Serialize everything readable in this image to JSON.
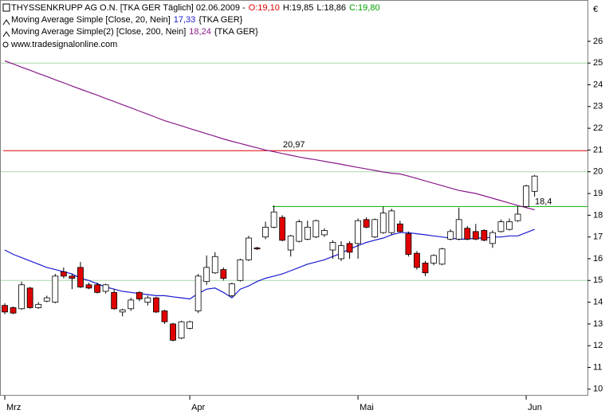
{
  "chart_data": {
    "type": "candlestick",
    "title": "THYSSENKRUPP AG O.N. [TKA GER  Täglich] 02.06.2009 -",
    "ohlc_labels": [
      {
        "text": "O:19,10",
        "color": "#e00000"
      },
      {
        "text": "H:19,85",
        "color": "#000000"
      },
      {
        "text": "L:18,86",
        "color": "#000000"
      },
      {
        "text": "C:19,80",
        "color": "#00a000"
      }
    ],
    "source": "www.tradesignalonline.com",
    "currency": "€",
    "categories": [
      "Mrz",
      null,
      null,
      null,
      null,
      null,
      null,
      null,
      null,
      null,
      null,
      null,
      null,
      null,
      null,
      null,
      null,
      null,
      null,
      null,
      null,
      null,
      "Apr",
      null,
      null,
      null,
      null,
      null,
      null,
      null,
      null,
      null,
      null,
      null,
      null,
      null,
      null,
      null,
      null,
      null,
      null,
      null,
      "Mai",
      null,
      null,
      null,
      null,
      null,
      null,
      null,
      null,
      null,
      null,
      null,
      null,
      null,
      null,
      null,
      null,
      null,
      null,
      null,
      "Jun",
      null
    ],
    "candles": {
      "up_color": "#ffffff",
      "down_color": "#e00000",
      "open": [
        13.85,
        13.75,
        13.7,
        14.65,
        13.75,
        14.05,
        14.0,
        15.4,
        15.2,
        15.6,
        14.8,
        14.8,
        14.5,
        14.45,
        13.55,
        13.7,
        14.45,
        14.0,
        14.2,
        13.6,
        13.0,
        12.35,
        12.8,
        13.6,
        14.95,
        15.35,
        15.5,
        14.3,
        15.0,
        15.95,
        16.5,
        17.0,
        17.45,
        17.9,
        16.4,
        16.8,
        16.9,
        17.0,
        17.1,
        16.4,
        16.0,
        16.7,
        16.7,
        17.8,
        17.0,
        17.2,
        17.2,
        17.6,
        17.15,
        16.25,
        15.8,
        15.8,
        15.75,
        16.9,
        16.9,
        17.4,
        17.25,
        17.3,
        16.7,
        17.25,
        17.35,
        17.75,
        18.4,
        19.1
      ],
      "high": [
        13.95,
        13.8,
        14.95,
        14.7,
        14.0,
        14.3,
        15.3,
        15.6,
        15.3,
        15.85,
        14.9,
        14.9,
        14.85,
        14.6,
        13.7,
        14.2,
        14.5,
        14.3,
        14.25,
        13.65,
        13.05,
        13.15,
        13.15,
        15.3,
        16.15,
        16.3,
        15.6,
        14.9,
        16.0,
        17.05,
        16.55,
        17.7,
        18.45,
        18.0,
        17.1,
        17.8,
        17.75,
        17.8,
        17.4,
        16.85,
        16.8,
        16.8,
        17.85,
        17.9,
        17.85,
        18.4,
        18.3,
        17.75,
        17.25,
        16.35,
        15.9,
        16.2,
        16.5,
        17.35,
        18.35,
        17.5,
        17.6,
        17.35,
        17.3,
        17.8,
        17.85,
        18.4,
        19.4,
        19.85
      ],
      "low": [
        13.45,
        13.45,
        13.65,
        13.7,
        13.7,
        14.0,
        13.95,
        15.1,
        14.6,
        14.65,
        14.6,
        14.4,
        14.4,
        13.65,
        13.35,
        13.6,
        14.05,
        13.85,
        13.5,
        13.0,
        12.2,
        12.3,
        12.75,
        13.5,
        14.8,
        15.3,
        15.0,
        14.25,
        14.95,
        15.9,
        16.4,
        16.9,
        17.4,
        16.8,
        16.1,
        16.75,
        16.85,
        16.95,
        17.0,
        16.0,
        15.9,
        16.0,
        16.0,
        17.4,
        16.95,
        17.15,
        17.1,
        17.2,
        16.1,
        15.5,
        15.2,
        15.7,
        15.7,
        16.85,
        16.85,
        16.85,
        16.85,
        16.8,
        16.5,
        17.2,
        17.3,
        17.7,
        18.35,
        18.86
      ],
      "close": [
        13.55,
        13.5,
        14.8,
        13.75,
        13.9,
        14.2,
        15.2,
        15.2,
        15.1,
        14.7,
        14.65,
        14.45,
        14.8,
        13.7,
        13.65,
        14.1,
        14.15,
        14.2,
        13.55,
        13.1,
        12.25,
        13.1,
        13.1,
        15.2,
        15.6,
        16.1,
        15.1,
        14.85,
        15.95,
        16.95,
        16.45,
        17.45,
        18.15,
        16.85,
        17.05,
        17.7,
        17.45,
        17.75,
        17.3,
        16.75,
        16.6,
        16.3,
        17.75,
        17.45,
        17.8,
        18.1,
        18.2,
        17.25,
        16.2,
        15.6,
        15.35,
        16.15,
        16.45,
        17.25,
        17.8,
        16.9,
        16.9,
        16.85,
        17.2,
        17.7,
        17.7,
        18.05,
        19.35,
        19.8
      ]
    },
    "series": [
      {
        "name": "Moving Average Simple [Close, 20, Nein]",
        "value_label": "17,33",
        "symbol": "{TKA GER}",
        "color": "#1a1ad0",
        "values": [
          16.4,
          16.2,
          16.05,
          15.9,
          15.75,
          15.6,
          15.5,
          15.4,
          15.3,
          15.1,
          15.0,
          14.85,
          14.7,
          14.6,
          14.5,
          14.45,
          14.4,
          14.35,
          14.3,
          14.3,
          14.25,
          14.2,
          14.15,
          14.4,
          14.6,
          14.65,
          14.45,
          14.2,
          14.6,
          14.75,
          14.95,
          15.1,
          15.2,
          15.3,
          15.45,
          15.6,
          15.75,
          15.85,
          15.95,
          16.1,
          16.25,
          16.45,
          16.6,
          16.75,
          16.85,
          16.95,
          17.1,
          17.2,
          17.2,
          17.15,
          17.1,
          17.05,
          17.0,
          16.95,
          16.9,
          16.9,
          16.95,
          16.95,
          17.0,
          17.0,
          17.05,
          17.05,
          17.2,
          17.35
        ]
      },
      {
        "name": "Moving Average Simple(2) [Close, 200, Nein]",
        "value_label": "18,24",
        "symbol": "{TKA GER}",
        "color": "#8a1a8a",
        "values": [
          25.1,
          24.96,
          24.81,
          24.67,
          24.52,
          24.38,
          24.23,
          24.09,
          23.94,
          23.8,
          23.66,
          23.52,
          23.37,
          23.23,
          23.08,
          22.94,
          22.79,
          22.65,
          22.5,
          22.35,
          22.23,
          22.11,
          21.99,
          21.87,
          21.75,
          21.63,
          21.51,
          21.4,
          21.3,
          21.2,
          21.1,
          21.0,
          20.92,
          20.84,
          20.76,
          20.68,
          20.61,
          20.55,
          20.48,
          20.41,
          20.34,
          20.27,
          20.2,
          20.13,
          20.06,
          19.99,
          19.93,
          19.9,
          19.8,
          19.69,
          19.58,
          19.47,
          19.36,
          19.25,
          19.14,
          19.07,
          19.0,
          18.89,
          18.78,
          18.67,
          18.56,
          18.45,
          18.35,
          18.25
        ]
      }
    ],
    "hlines": [
      {
        "value": 20.97,
        "value_label": "20,97",
        "color": "#e00000",
        "start_index": 0
      },
      {
        "value": 18.4,
        "value_label": "18,4",
        "color": "#00b000",
        "start_index": 32
      }
    ],
    "ylim": [
      9.7,
      27.9
    ],
    "yticks": [
      10,
      11,
      12,
      13,
      14,
      15,
      16,
      17,
      18,
      19,
      20,
      21,
      22,
      23,
      24,
      25,
      26
    ],
    "grid_values": [
      15,
      20,
      25
    ],
    "grid_color": "#a8d8a8"
  }
}
